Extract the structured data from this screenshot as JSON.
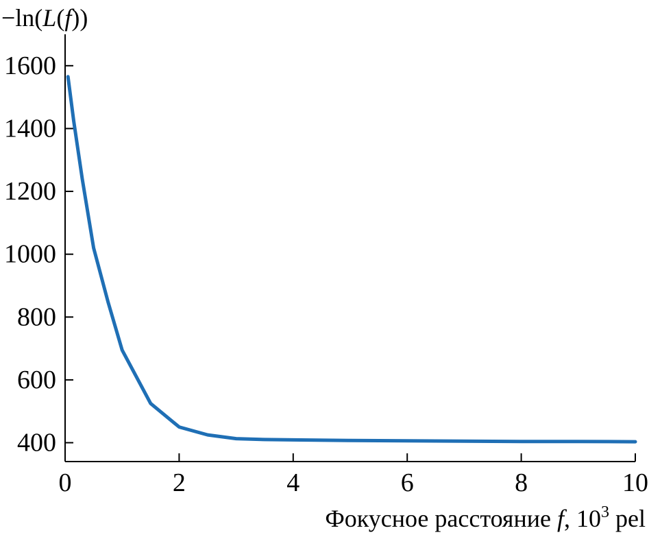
{
  "chart_data": {
    "type": "line",
    "ylabel": {
      "prefix": "−ln(",
      "symbol": "L",
      "mid": "(",
      "symbol2": "f",
      "suffix": "))"
    },
    "xlabel": {
      "prefix": "Фокусное расстояние ",
      "symbol": "f",
      "mid": ", 10",
      "sup": "3",
      "suffix": " pel"
    },
    "xlim": [
      0,
      10
    ],
    "ylim": [
      340,
      1700
    ],
    "x_ticks": [
      0,
      2,
      4,
      6,
      8,
      10
    ],
    "x_tick_labels": [
      "0",
      "2",
      "4",
      "6",
      "8",
      "10"
    ],
    "y_ticks": [
      400,
      600,
      800,
      1000,
      1200,
      1400,
      1600
    ],
    "y_tick_labels": [
      "400",
      "600",
      "800",
      "1000",
      "1200",
      "1400",
      "1600"
    ],
    "grid": false,
    "legend": "none",
    "series": [
      {
        "color": "#1f6fb5",
        "x": [
          0.05,
          0.15,
          0.3,
          0.5,
          0.75,
          1.0,
          1.5,
          2.0,
          2.5,
          3.0,
          3.5,
          4.0,
          5.0,
          6.0,
          7.0,
          8.0,
          9.0,
          10.0
        ],
        "y": [
          1565,
          1425,
          1240,
          1020,
          850,
          695,
          525,
          450,
          425,
          413,
          410,
          409,
          407,
          406,
          405,
          404,
          404,
          403
        ]
      }
    ]
  }
}
